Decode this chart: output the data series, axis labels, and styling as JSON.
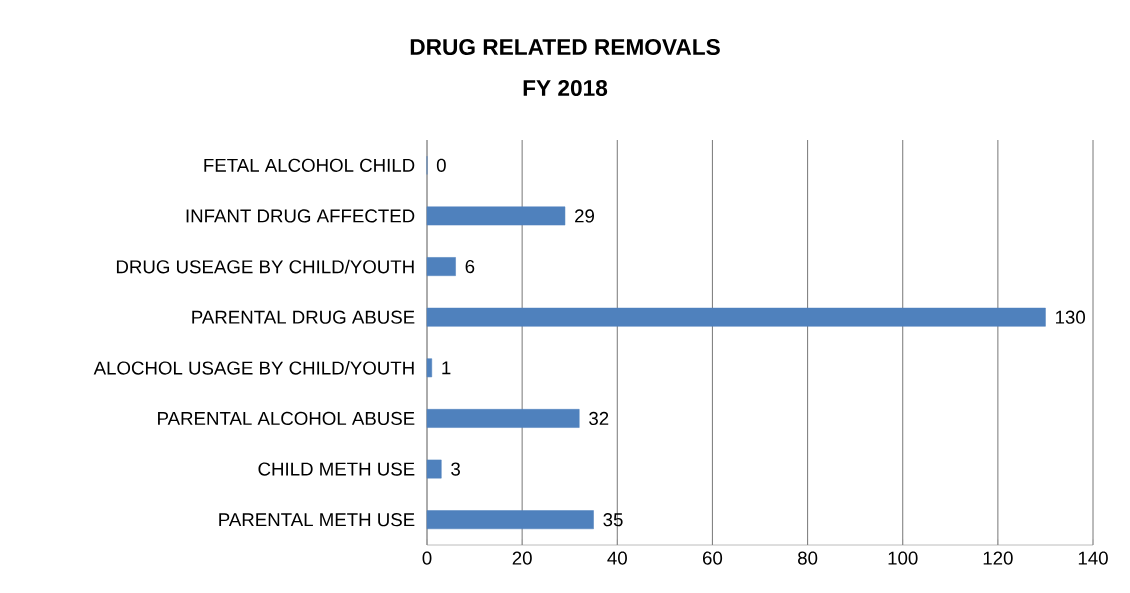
{
  "chart_data": {
    "type": "bar",
    "orientation": "horizontal",
    "title": "DRUG RELATED REMOVALS",
    "subtitle": "FY 2018",
    "categories": [
      "FETAL ALCOHOL CHILD",
      "INFANT DRUG AFFECTED",
      "DRUG USEAGE BY CHILD/YOUTH",
      "PARENTAL DRUG ABUSE",
      "ALOCHOL USAGE BY CHILD/YOUTH",
      "PARENTAL ALCOHOL ABUSE",
      "CHILD METH USE",
      "PARENTAL METH USE"
    ],
    "values": [
      0,
      29,
      6,
      130,
      1,
      32,
      3,
      35
    ],
    "color": "#4f81bd",
    "xlim": [
      0,
      140
    ],
    "xticks": [
      0,
      20,
      40,
      60,
      80,
      100,
      120,
      140
    ],
    "grid": "x",
    "data_labels": true
  }
}
